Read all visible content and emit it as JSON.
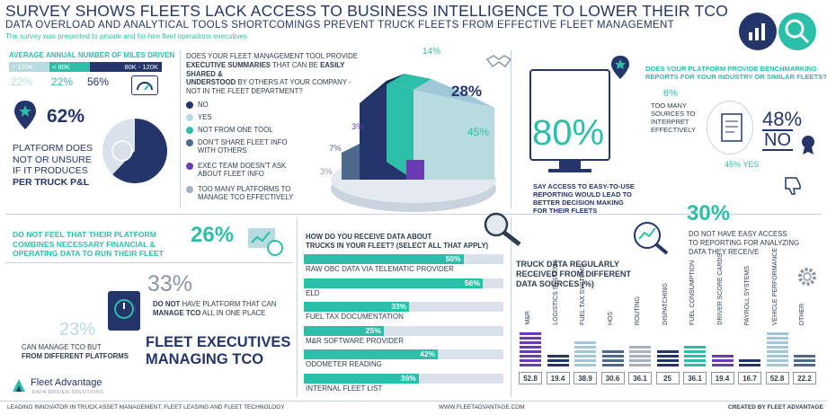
{
  "header": {
    "title": "SURVEY SHOWS FLEETS LACK ACCESS TO BUSINESS INTELLIGENCE TO LOWER THEIR TCO",
    "subtitle": "DATA OVERLOAD AND ANALYTICAL TOOLS SHORTCOMINGS PREVENT TRUCK FLEETS FROM EFFECTIVE FLEET MANAGEMENT",
    "note": "The survey was presented to private and for-hire fleet operations executives"
  },
  "miles": {
    "title": "AVERAGE ANNUAL NUMBER OF MILES DRIVEN",
    "segments": [
      {
        "label": "> 120K",
        "value": "22%",
        "color": "#b8dbe0"
      },
      {
        "label": "< 80K",
        "value": "22%",
        "color": "#2bbfa9"
      },
      {
        "label": "80K - 120K",
        "value": "56%",
        "color": "#24356b"
      }
    ]
  },
  "pl": {
    "pct": "62%",
    "line1": "PLATFORM DOES",
    "line2": "NOT OR UNSURE",
    "line3": "IF IT PRODUCES",
    "line4": "PER TRUCK P&L",
    "fraction": 0.62
  },
  "exec_summary": {
    "question_1": "DOES YOUR FLEET MANAGEMENT TOOL PROVIDE",
    "question_2": "EXECUTIVE SUMMARIES",
    "question_2b": "THAT CAN BE",
    "question_2c": "EASILY SHARED &",
    "question_3": "UNDERSTOOD",
    "question_3b": "BY OTHERS AT YOUR COMPANY -",
    "question_4": "NOT IN THE FLEET DEPARTMENT?",
    "legend": [
      {
        "label": "NO",
        "color": "#24356b"
      },
      {
        "label": "YES",
        "color": "#b8dbe0"
      },
      {
        "label": "NOT FROM ONE TOOL",
        "color": "#2bbfa9"
      },
      {
        "label": "DON'T SHARE FLEET INFO",
        "label2": "WITH OTHERS",
        "color": "#4d6a8c"
      },
      {
        "label": "EXEC TEAM DOESN'T ASK",
        "label2": "ABOUT FLEET INFO",
        "color": "#6a3bb3"
      },
      {
        "label": "TOO MANY PLATFORMS TO",
        "label2": "MANAGE TCO EFFECTIVELY",
        "color": "#a7b1bd"
      }
    ],
    "values": [
      "14%",
      "28%",
      "45%",
      "3%",
      "7%",
      "3%"
    ]
  },
  "reporting": {
    "pct": "80%",
    "text1": "SAY ACCESS TO EASY-TO-USE",
    "text2": "REPORTING WOULD LEAD TO",
    "text3": "BETTER DECISION MAKING",
    "text4": "FOR THEIR FLEETS"
  },
  "benchmark": {
    "question1": "DOES YOUR PLATFORM PROVIDE BENCHMARKING",
    "question2": "REPORTS FOR YOUR INDUSTRY OR SIMILAR FLEETS?",
    "many_pct": "6%",
    "many1": "TOO MANY",
    "many2": "SOURCES TO",
    "many3": "INTERPRET",
    "many4": "EFFECTIVELY",
    "no_pct": "48%",
    "no_label": "NO",
    "yes": "45% YES"
  },
  "combine": {
    "line1": "DO NOT FEEL THAT THEIR PLATFORM",
    "line2": "COMBINES NECESSARY FINANCIAL &",
    "line3": "OPERATING DATA TO RUN THEIR FLEET",
    "pct": "26%"
  },
  "tco": {
    "pct33": "33%",
    "do_not": "DO NOT",
    "have": "HAVE PLATFORM THAT CAN",
    "manage": "MANAGE TCO",
    "rest": "ALL IN ONE PLACE",
    "pct23": "23%",
    "can1": "CAN MANAGE TCO BUT",
    "can2": "FROM DIFFERENT PLATFORMS",
    "title1": "FLEET EXECUTIVES",
    "title2": "MANAGING TCO"
  },
  "receive": {
    "question1": "HOW DO YOU RECEIVE DATA ABOUT",
    "question2": "TRUCKS IN YOUR FLEET? (SELECT ALL THAT APPLY)"
  },
  "easy_access": {
    "pct": "30%",
    "line1": "DO NOT HAVE EASY ACCESS",
    "line2": "TO REPORTING FOR ANALYZING",
    "line3": "DATA THEY RECEIVE"
  },
  "sources": {
    "title1": "TRUCK DATA REGULARLY",
    "title2": "RECEIVED FROM DIFFERENT",
    "title3": "DATA SOURCES (%)"
  },
  "brand": {
    "name": "Fleet Advantage",
    "tag": "DATA DRIVEN SOLUTIONS"
  },
  "footer": {
    "left": "LEADING INNOVATOR IN TRUCK ASSET MANAGEMENT, FLEET LEASING AND FLEET TECHNOLOGY",
    "center": "WWW.FLEETADVANTAGE.COM",
    "right": "CREATED BY FLEET ADVANTAGE"
  },
  "chart_data": [
    {
      "type": "bar",
      "categories": [
        "RAW OBC DATA VIA TELEMATIC PROVIDER",
        "ELD",
        "FUEL TAX DOCUMENTATION",
        "M&R SOFTWARE PROVIDER",
        "ODOMETER READING",
        "INTERNAL FLEET LIST"
      ],
      "values": [
        50,
        56,
        33,
        25,
        42,
        36
      ],
      "labels": [
        "50%",
        "56%",
        "33%",
        "25%",
        "42%",
        "36%"
      ],
      "ylim": [
        0,
        100
      ]
    },
    {
      "type": "bar",
      "categories": [
        "M&R",
        "LOGISTICS SYSTEMS",
        "FUEL TAX SYSTEMS",
        "HOS",
        "ROUTING",
        "DISPATCHING",
        "FUEL CONSUMPTION",
        "DRIVER SCORE CARDS",
        "PAYROLL SYSTEMS",
        "VEHICLE PERFORMANCE",
        "OTHER"
      ],
      "values": [
        52.8,
        19.4,
        38.9,
        30.6,
        36.1,
        25,
        36.1,
        19.4,
        16.7,
        52.8,
        22.2
      ],
      "labels": [
        "52.8",
        "19.4",
        "38.9",
        "30.6",
        "36.1",
        "25",
        "36.1",
        "19.4",
        "16.7",
        "52.8",
        "22.2"
      ],
      "colors": [
        "#6a3bb3",
        "#24356b",
        "#9fc7d8",
        "#4d6a8c",
        "#a7b1bd",
        "#24356b",
        "#2bbfa9",
        "#6a3bb3",
        "#24356b",
        "#9fc7d8",
        "#4d6a8c"
      ]
    }
  ]
}
